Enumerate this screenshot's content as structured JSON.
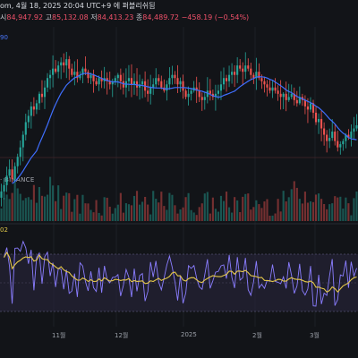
{
  "header": {
    "title_line": "om, 4월 18, 2025 20:04 UTC+9 에 퍼블리쉬됨",
    "ohlc": {
      "open_label": "시",
      "open": "84,947.92",
      "high_label": "고",
      "high": "85,132.08",
      "low_label": "저",
      "low": "84,413.23",
      "close_label": "종",
      "close": "84,489.72",
      "change": "−458.19 (−0.54%)"
    }
  },
  "ma_label": "90",
  "exchange_label": "· BINANCE",
  "osc_label": "02",
  "x_axis": {
    "labels": [
      "11월",
      "12월",
      "2025",
      "2월",
      "3월"
    ]
  },
  "colors": {
    "up": "#26a69a",
    "down": "#ef5350",
    "ma": "#3f6fff",
    "osc_line": "#8a7dff",
    "osc_signal": "#e4c74a",
    "band_fill": "#2a2740",
    "grid": "#1c1f26"
  },
  "chart_data": {
    "type": "candlestick",
    "price_axis": "not shown",
    "close_series": [
      64,
      66,
      69,
      71,
      68,
      72,
      75,
      78,
      82,
      86,
      88,
      91,
      90,
      92,
      95,
      94,
      97,
      100,
      101,
      103,
      102,
      104,
      105,
      104,
      106,
      103,
      101,
      102,
      100,
      101,
      103,
      102,
      100,
      101,
      99,
      98,
      100,
      99,
      100,
      99,
      98,
      99,
      100,
      101,
      99,
      97,
      99,
      100,
      98,
      99,
      97,
      98,
      99,
      96,
      95,
      97,
      98,
      100,
      99,
      97,
      96,
      98,
      100,
      101,
      100,
      98,
      99,
      96,
      94,
      95,
      96,
      97,
      96,
      94,
      93,
      94,
      96,
      95,
      94,
      95,
      96,
      98,
      100,
      99,
      101,
      102,
      101,
      104,
      103,
      102,
      104,
      103,
      101,
      100,
      102,
      100,
      99,
      98,
      97,
      96,
      97,
      96,
      95,
      94,
      95,
      93,
      94,
      95,
      93,
      92,
      94,
      93,
      91,
      90,
      92,
      89,
      86,
      87,
      84,
      82,
      80,
      81,
      83,
      80,
      78,
      79,
      80,
      82,
      81,
      83,
      84,
      85
    ],
    "ma_series_label": "90",
    "oscillator": {
      "label": "02",
      "range": [
        0,
        100
      ]
    }
  }
}
